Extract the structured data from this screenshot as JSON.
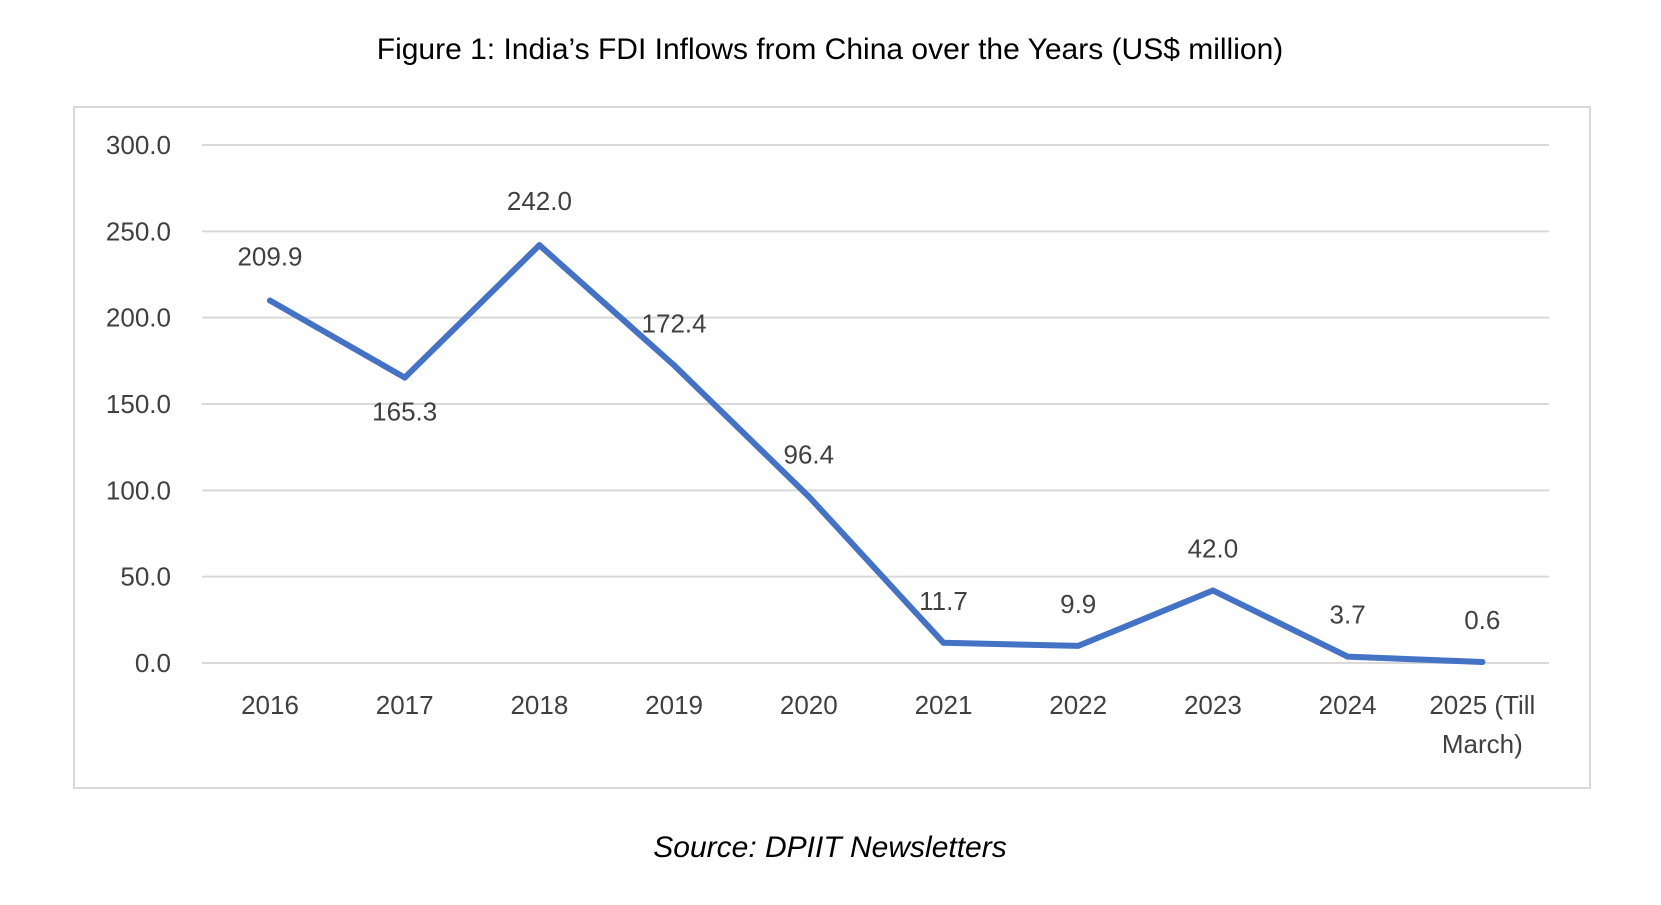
{
  "chart_data": {
    "type": "line",
    "title": "Figure 1: India’s FDI Inflows from China over the Years (US$ million)",
    "source": "Source: DPIIT Newsletters",
    "categories": [
      "2016",
      "2017",
      "2018",
      "2019",
      "2020",
      "2021",
      "2022",
      "2023",
      "2024",
      "2025 (Till March)"
    ],
    "category_lines": [
      [
        "2016"
      ],
      [
        "2017"
      ],
      [
        "2018"
      ],
      [
        "2019"
      ],
      [
        "2020"
      ],
      [
        "2021"
      ],
      [
        "2022"
      ],
      [
        "2023"
      ],
      [
        "2024"
      ],
      [
        "2025 (Till",
        "March)"
      ]
    ],
    "values": [
      209.9,
      165.3,
      242.0,
      172.4,
      96.4,
      11.7,
      9.9,
      42.0,
      3.7,
      0.6
    ],
    "data_labels": [
      "209.9",
      "165.3",
      "242.0",
      "172.4",
      "96.4",
      "11.7",
      "9.9",
      "42.0",
      "3.7",
      "0.6"
    ],
    "ylim": [
      0,
      300
    ],
    "yticks": [
      0,
      50,
      100,
      150,
      200,
      250,
      300
    ],
    "ytick_labels": [
      "0.0",
      "50.0",
      "100.0",
      "150.0",
      "200.0",
      "250.0",
      "300.0"
    ],
    "xlabel": "",
    "ylabel": "",
    "grid": true,
    "legend": "none",
    "line_color": "#4472C4",
    "grid_color": "#D9D9D9",
    "frame_color": "#D9D9D9",
    "text_color": "#404040"
  }
}
